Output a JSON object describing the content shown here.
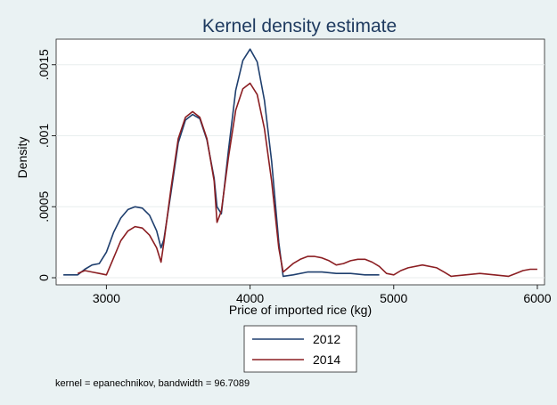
{
  "chart_data": {
    "type": "line",
    "title": "Kernel density estimate",
    "xlabel": "Price of imported rice (kg)",
    "ylabel": "Density",
    "xlim": [
      2650,
      6050
    ],
    "ylim": [
      -5e-05,
      0.00168
    ],
    "x_ticks": [
      3000,
      4000,
      5000,
      6000
    ],
    "x_tick_labels": [
      "3000",
      "4000",
      "5000",
      "6000"
    ],
    "y_ticks": [
      0,
      0.0005,
      0.001,
      0.0015
    ],
    "y_tick_labels": [
      "0",
      ".0005",
      ".001",
      ".0015"
    ],
    "grid": true,
    "legend_position": "bottom",
    "note": "kernel = epanechnikov, bandwidth = 96.7089",
    "series": [
      {
        "name": "2012",
        "color": "#1f3f6e",
        "points": [
          [
            2700,
            2e-05
          ],
          [
            2800,
            2e-05
          ],
          [
            2850,
            6e-05
          ],
          [
            2900,
            9e-05
          ],
          [
            2950,
            0.0001
          ],
          [
            3000,
            0.00018
          ],
          [
            3050,
            0.00032
          ],
          [
            3100,
            0.00042
          ],
          [
            3150,
            0.00048
          ],
          [
            3200,
            0.0005
          ],
          [
            3250,
            0.00049
          ],
          [
            3300,
            0.00044
          ],
          [
            3350,
            0.00033
          ],
          [
            3380,
            0.00021
          ],
          [
            3400,
            0.00027
          ],
          [
            3450,
            0.0006
          ],
          [
            3500,
            0.00095
          ],
          [
            3550,
            0.00111
          ],
          [
            3600,
            0.00115
          ],
          [
            3650,
            0.00112
          ],
          [
            3700,
            0.00097
          ],
          [
            3750,
            0.0007
          ],
          [
            3770,
            0.0005
          ],
          [
            3800,
            0.00045
          ],
          [
            3850,
            0.0009
          ],
          [
            3900,
            0.00132
          ],
          [
            3950,
            0.00153
          ],
          [
            4000,
            0.00161
          ],
          [
            4050,
            0.00152
          ],
          [
            4100,
            0.00125
          ],
          [
            4150,
            0.00082
          ],
          [
            4200,
            0.00025
          ],
          [
            4230,
            1e-05
          ],
          [
            4300,
            2e-05
          ],
          [
            4400,
            4e-05
          ],
          [
            4500,
            4e-05
          ],
          [
            4600,
            3e-05
          ],
          [
            4700,
            3e-05
          ],
          [
            4800,
            2e-05
          ],
          [
            4900,
            2e-05
          ]
        ]
      },
      {
        "name": "2014",
        "color": "#8b1e22",
        "points": [
          [
            2800,
            3e-05
          ],
          [
            2850,
            5e-05
          ],
          [
            2900,
            4e-05
          ],
          [
            2950,
            3e-05
          ],
          [
            3000,
            2e-05
          ],
          [
            3050,
            0.00014
          ],
          [
            3100,
            0.00026
          ],
          [
            3150,
            0.00033
          ],
          [
            3200,
            0.00036
          ],
          [
            3250,
            0.00035
          ],
          [
            3300,
            0.0003
          ],
          [
            3350,
            0.00021
          ],
          [
            3380,
            0.00011
          ],
          [
            3400,
            0.00025
          ],
          [
            3450,
            0.00063
          ],
          [
            3500,
            0.00098
          ],
          [
            3550,
            0.00113
          ],
          [
            3600,
            0.00117
          ],
          [
            3650,
            0.00113
          ],
          [
            3700,
            0.00098
          ],
          [
            3750,
            0.00068
          ],
          [
            3770,
            0.00039
          ],
          [
            3800,
            0.00047
          ],
          [
            3850,
            0.00085
          ],
          [
            3900,
            0.00118
          ],
          [
            3950,
            0.00133
          ],
          [
            4000,
            0.00137
          ],
          [
            4050,
            0.00129
          ],
          [
            4100,
            0.00105
          ],
          [
            4150,
            0.00068
          ],
          [
            4200,
            0.00021
          ],
          [
            4230,
            4e-05
          ],
          [
            4300,
            0.0001
          ],
          [
            4350,
            0.00013
          ],
          [
            4400,
            0.00015
          ],
          [
            4450,
            0.00015
          ],
          [
            4500,
            0.00014
          ],
          [
            4550,
            0.00012
          ],
          [
            4600,
            9e-05
          ],
          [
            4650,
            0.0001
          ],
          [
            4700,
            0.00012
          ],
          [
            4750,
            0.00013
          ],
          [
            4800,
            0.00013
          ],
          [
            4850,
            0.00011
          ],
          [
            4900,
            8e-05
          ],
          [
            4950,
            3e-05
          ],
          [
            5000,
            2e-05
          ],
          [
            5050,
            5e-05
          ],
          [
            5100,
            7e-05
          ],
          [
            5200,
            9e-05
          ],
          [
            5300,
            7e-05
          ],
          [
            5350,
            4e-05
          ],
          [
            5400,
            1e-05
          ],
          [
            5500,
            2e-05
          ],
          [
            5600,
            3e-05
          ],
          [
            5700,
            2e-05
          ],
          [
            5800,
            1e-05
          ],
          [
            5850,
            3e-05
          ],
          [
            5900,
            5e-05
          ],
          [
            5950,
            6e-05
          ],
          [
            6000,
            6e-05
          ]
        ]
      }
    ]
  }
}
